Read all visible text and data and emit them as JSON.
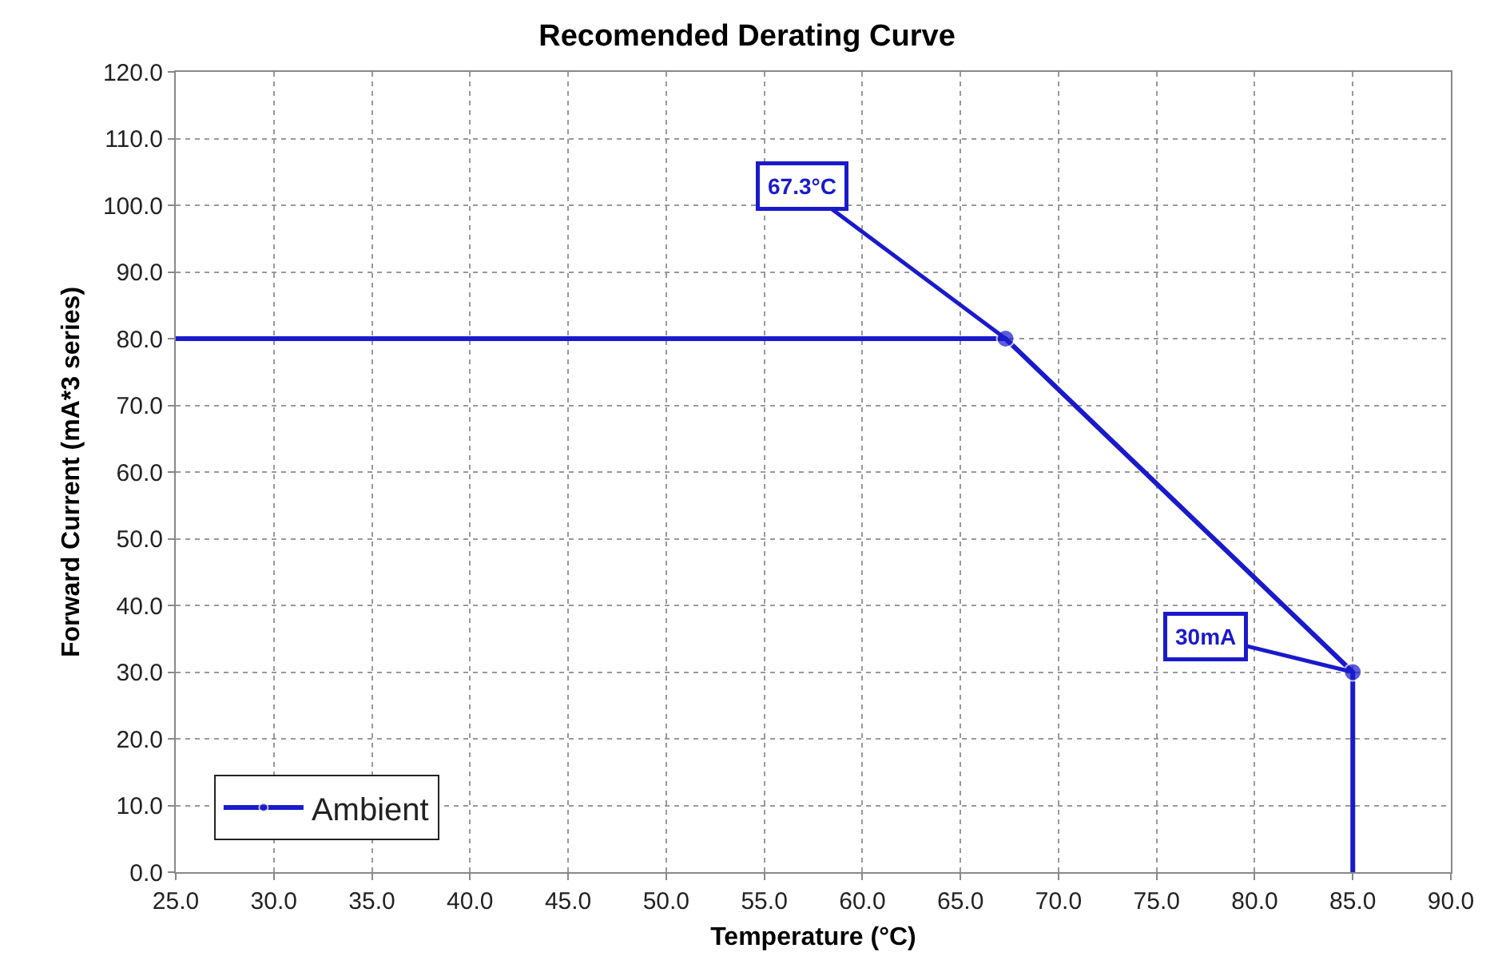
{
  "chart_data": {
    "type": "line",
    "title": "Recomended Derating Curve",
    "xlabel": "Temperature (°C)",
    "ylabel": "Forward Current (mA*3 series)",
    "x": [
      25,
      67.3,
      85,
      85
    ],
    "series": [
      {
        "name": "Ambient",
        "color": "#1a1acc",
        "values": [
          80,
          80,
          30,
          0
        ]
      }
    ],
    "annotations": [
      {
        "text": "67.3°C",
        "x": 67.3,
        "y": 80
      },
      {
        "text": "30mA",
        "x": 85,
        "y": 30
      }
    ],
    "xlim": [
      25,
      90
    ],
    "xticks": [
      {
        "value": 25,
        "label": "25.0"
      },
      {
        "value": 30,
        "label": "30.0"
      },
      {
        "value": 35,
        "label": "35.0"
      },
      {
        "value": 40,
        "label": "40.0"
      },
      {
        "value": 45,
        "label": "45.0"
      },
      {
        "value": 50,
        "label": "50.0"
      },
      {
        "value": 55,
        "label": "55.0"
      },
      {
        "value": 60,
        "label": "60.0"
      },
      {
        "value": 65,
        "label": "65.0"
      },
      {
        "value": 70,
        "label": "70.0"
      },
      {
        "value": 75,
        "label": "75.0"
      },
      {
        "value": 80,
        "label": "80.0"
      },
      {
        "value": 85,
        "label": "85.0"
      },
      {
        "value": 90,
        "label": "90.0"
      }
    ],
    "ylim": [
      0,
      120
    ],
    "yticks": [
      {
        "value": 0,
        "label": "0.0"
      },
      {
        "value": 10,
        "label": "10.0"
      },
      {
        "value": 20,
        "label": "20.0"
      },
      {
        "value": 30,
        "label": "30.0"
      },
      {
        "value": 40,
        "label": "40.0"
      },
      {
        "value": 50,
        "label": "50.0"
      },
      {
        "value": 60,
        "label": "60.0"
      },
      {
        "value": 70,
        "label": "70.0"
      },
      {
        "value": 80,
        "label": "80.0"
      },
      {
        "value": 90,
        "label": "90.0"
      },
      {
        "value": 100,
        "label": "100.0"
      },
      {
        "value": 110,
        "label": "110.0"
      },
      {
        "value": 120,
        "label": "120.0"
      }
    ],
    "grid": true,
    "legend": "bottom left",
    "marker": "circle",
    "line_style": "solid"
  }
}
